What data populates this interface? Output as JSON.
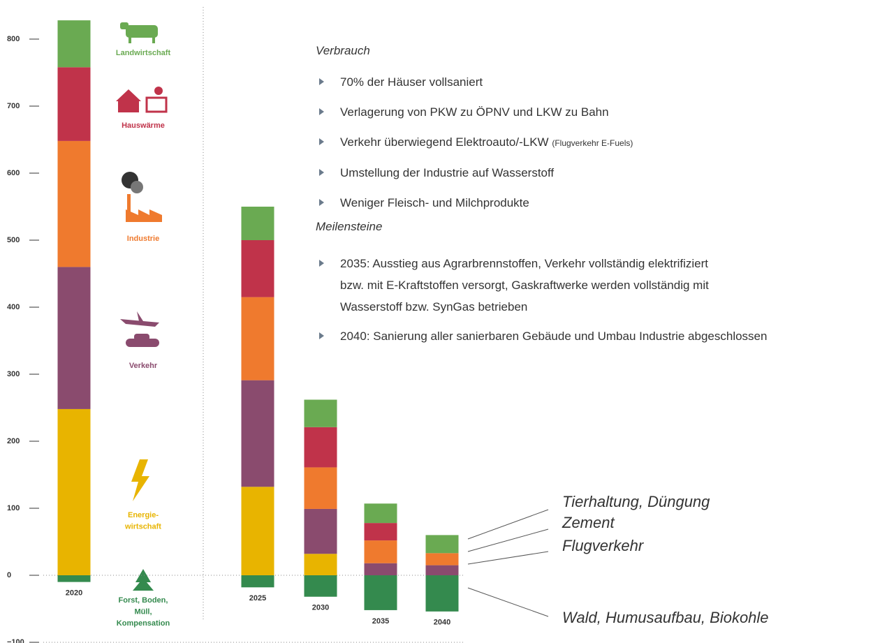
{
  "chart_data": {
    "type": "bar",
    "stacked": true,
    "categories": [
      "2020",
      "2025",
      "2030",
      "2035",
      "2040"
    ],
    "series": [
      {
        "name": "Energie-\nwirtschaft",
        "color": "#e8b400",
        "values": [
          248,
          132,
          32,
          0,
          0
        ]
      },
      {
        "name": "Verkehr",
        "color": "#8a4b6e",
        "values": [
          212,
          159,
          67,
          18,
          15
        ]
      },
      {
        "name": "Industrie",
        "color": "#ef7a2e",
        "values": [
          188,
          124,
          62,
          34,
          18
        ]
      },
      {
        "name": "Hauswärme",
        "color": "#c0334a",
        "values": [
          110,
          85,
          60,
          26,
          0
        ]
      },
      {
        "name": "Landwirtschaft",
        "color": "#6aaa52",
        "values": [
          70,
          50,
          41,
          29,
          27
        ]
      },
      {
        "name": "Forst, Boden,\nMüll,\nKompensation",
        "color": "#348a4e",
        "values": [
          -10,
          -18,
          -32,
          -52,
          -54
        ]
      }
    ],
    "ylim": [
      -100,
      830
    ],
    "yticks": [
      {
        "value": -100,
        "label": "−100"
      },
      0,
      100,
      200,
      300,
      400,
      500,
      600,
      700,
      800
    ],
    "annotations": [
      "Tierhaltung, Düngung",
      "Zement",
      "Flugverkehr",
      "Wald, Humusaufbau, Biokohle"
    ]
  },
  "panel": {
    "consumption_title": "Verbrauch",
    "consumption": [
      {
        "text": "70% der Häuser vollsaniert"
      },
      {
        "text": "Verlagerung von PKW zu ÖPNV und LKW zu Bahn"
      },
      {
        "text": "Verkehr überwiegend Elektroauto/-LKW",
        "note": "(Flugverkehr E-Fuels)"
      },
      {
        "text": "Umstellung der Industrie auf Wasserstoff"
      },
      {
        "text": "Weniger Fleisch- und Milchprodukte"
      }
    ],
    "milestones_title": "Meilensteine",
    "milestones": [
      {
        "text": "2035: Ausstieg aus Agrarbrennstoffen, Verkehr vollständig elektrifiziert bzw. mit E-Kraftstoffen versorgt, Gaskraftwerke werden vollständig mit Wasserstoff bzw. SynGas betrieben"
      },
      {
        "text": "2040: Sanierung aller sanierbaren Gebäude und Umbau Industrie abgeschlossen"
      }
    ]
  }
}
